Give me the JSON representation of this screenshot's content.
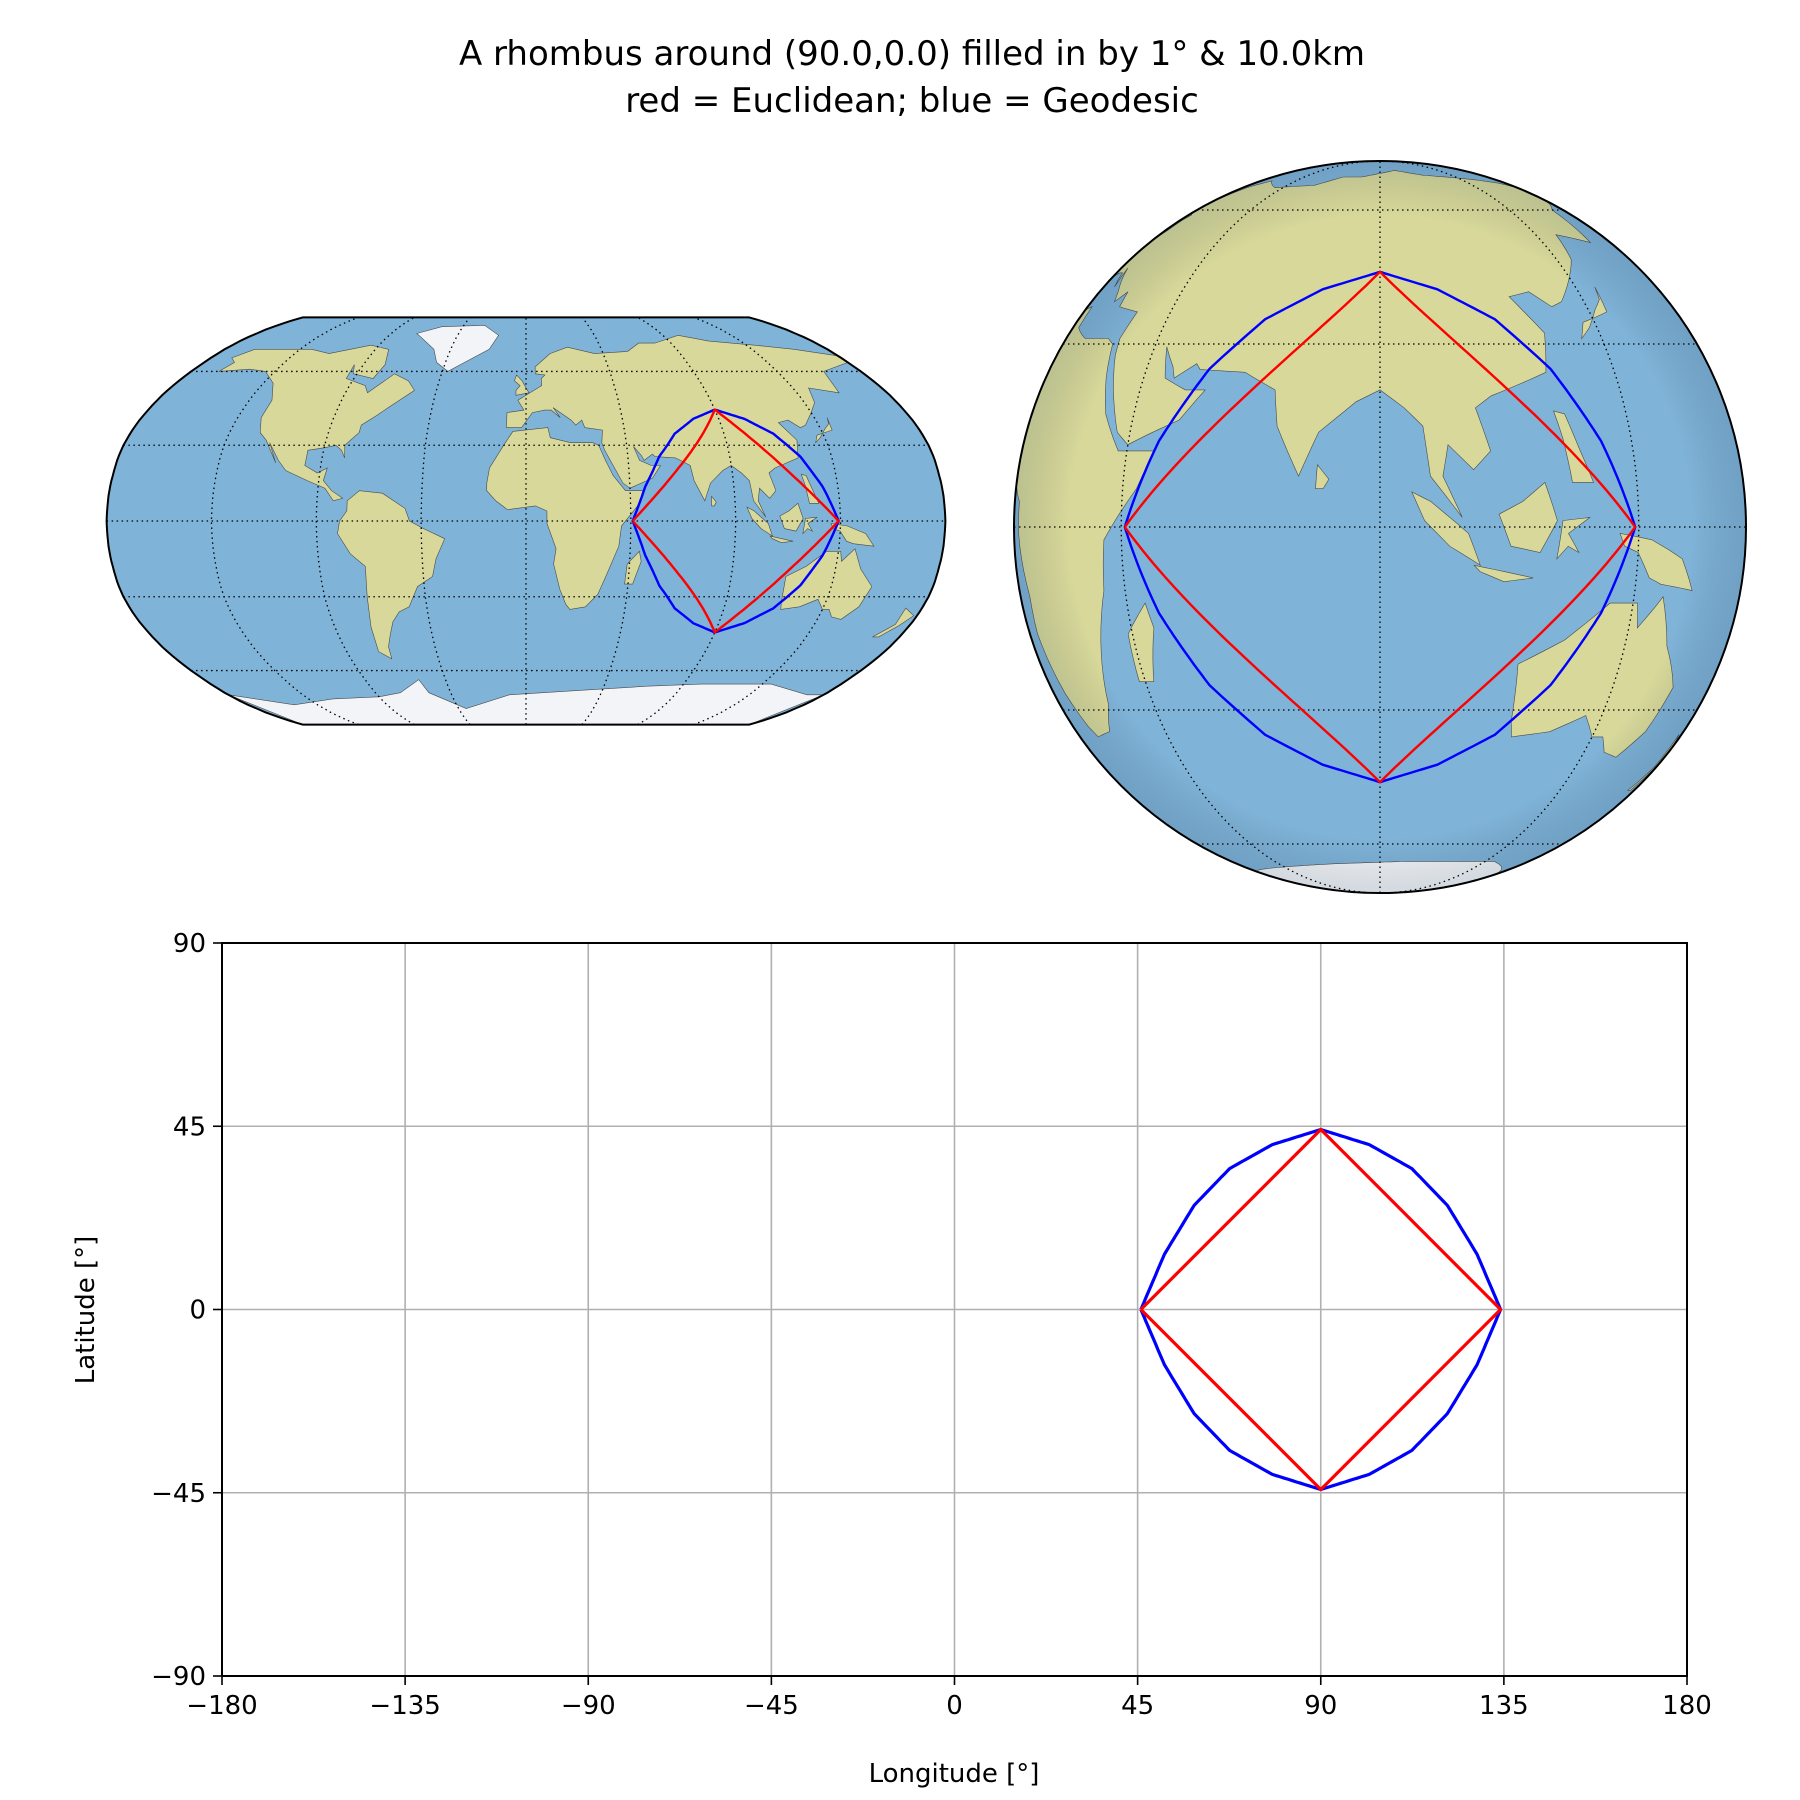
{
  "figure": {
    "title_line1": "A rhombus around (90.0,0.0) filled in by 1° & 10.0km",
    "title_line2": "red = Euclidean; blue = Geodesic"
  },
  "colors": {
    "euclidean": "#ff0000",
    "geodesic": "#0000ff",
    "ocean": "#7fb3d8",
    "land": "#d7d89a",
    "ice": "#f2f4f7",
    "grid": "#b0b0b0",
    "graticule": "#000000"
  },
  "maps": [
    {
      "projection": "robinson",
      "central_longitude": 0,
      "graticule_lon_step": 45,
      "graticule_lat_step": 30
    },
    {
      "projection": "orthographic",
      "central_longitude": 90,
      "central_latitude": 0,
      "graticule_lon_step": 45,
      "graticule_lat_step": 30
    }
  ],
  "chart_data": {
    "type": "line",
    "xlabel": "Longitude [°]",
    "ylabel": "Latitude [°]",
    "xlim": [
      -180,
      180
    ],
    "ylim": [
      -90,
      90
    ],
    "xticks": [
      -180,
      -135,
      -90,
      -45,
      0,
      45,
      90,
      135,
      180
    ],
    "yticks": [
      -90,
      -45,
      0,
      45,
      90
    ],
    "xtick_labels": [
      "−180",
      "−135",
      "−90",
      "−45",
      "0",
      "45",
      "90",
      "135",
      "180"
    ],
    "ytick_labels": [
      "−90",
      "−45",
      "0",
      "45",
      "90"
    ],
    "grid": true,
    "series": [
      {
        "name": "Euclidean",
        "color": "#ff0000",
        "x": [
          45.8,
          90,
          134.2,
          90,
          45.8
        ],
        "y": [
          0,
          44.2,
          0,
          -44.2,
          0
        ]
      },
      {
        "name": "Geodesic",
        "color": "#0000ff",
        "x": [
          45.8,
          51.6,
          58.9,
          67.6,
          78.1,
          90,
          101.9,
          112.4,
          121.1,
          128.4,
          134.2,
          128.4,
          121.1,
          112.4,
          101.9,
          90,
          78.1,
          67.6,
          58.9,
          51.6,
          45.8
        ],
        "y": [
          0,
          13.6,
          25.6,
          34.6,
          40.5,
          44.2,
          40.5,
          34.6,
          25.6,
          13.6,
          0,
          -13.6,
          -25.6,
          -34.6,
          -40.5,
          -44.2,
          -40.5,
          -34.6,
          -25.6,
          -13.6,
          0
        ]
      }
    ]
  }
}
